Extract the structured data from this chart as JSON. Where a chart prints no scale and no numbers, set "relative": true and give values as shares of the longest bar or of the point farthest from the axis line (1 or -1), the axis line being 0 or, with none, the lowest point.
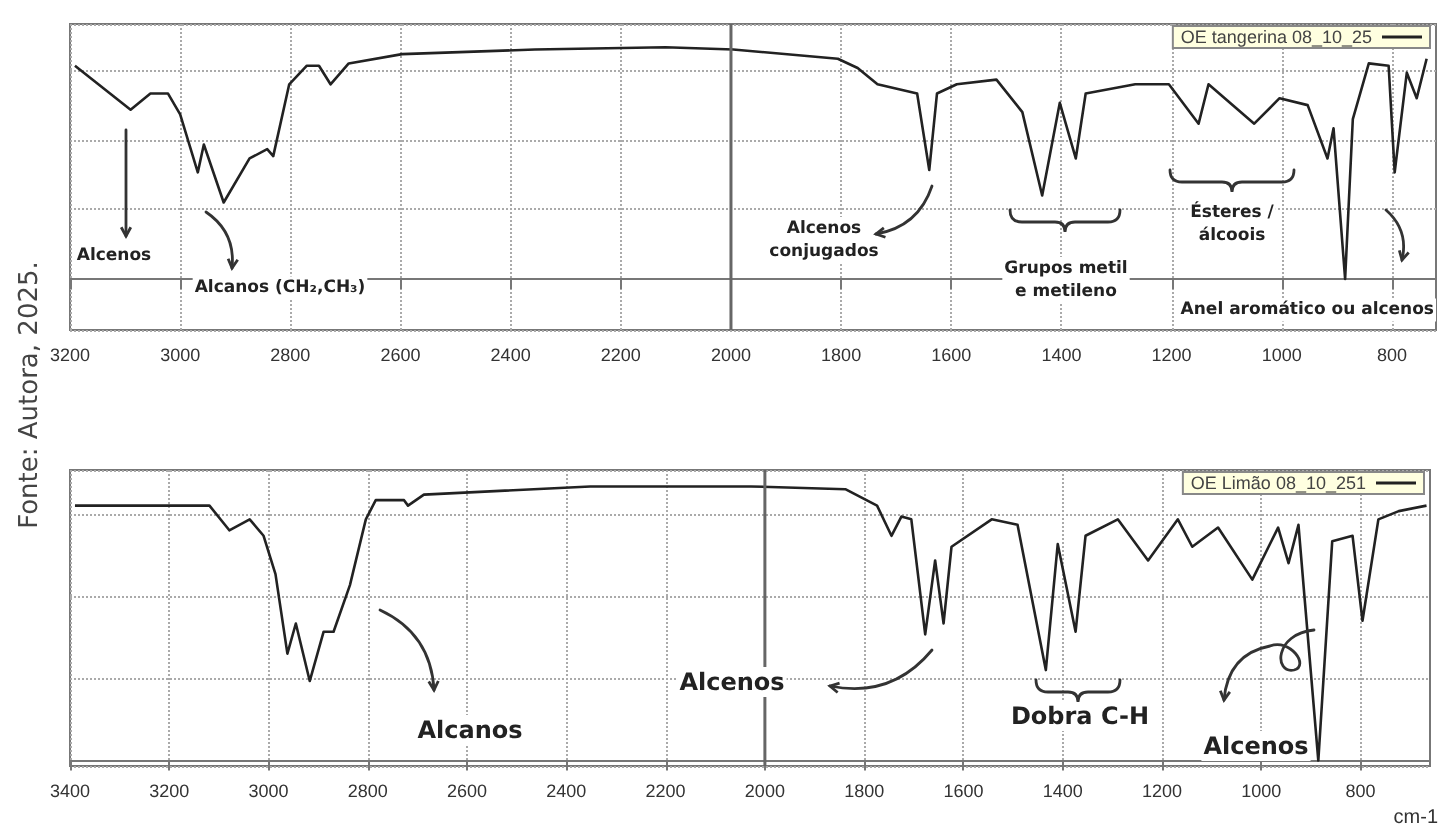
{
  "chart_data": [
    {
      "type": "line",
      "relative": true,
      "grid": true,
      "legend": "top right",
      "marker": "none",
      "xlim": [
        3200,
        720
      ],
      "xticks": [
        3200,
        3000,
        2800,
        2600,
        2400,
        2200,
        2000,
        1800,
        1600,
        1400,
        1200,
        1000,
        800
      ],
      "ref_lines": [
        {
          "axis": "x",
          "value": 2000,
          "color": "#666666"
        }
      ],
      "series": [
        {
          "name": "OE tangerina 08_10_25",
          "color": "#222222",
          "x": [
            3191,
            3090,
            3054,
            3022,
            3000,
            2968,
            2957,
            2921,
            2874,
            2842,
            2831,
            2802,
            2770,
            2748,
            2727,
            2694,
            2597,
            2356,
            2119,
            1996,
            1806,
            1770,
            1734,
            1662,
            1640,
            1626,
            1590,
            1518,
            1471,
            1435,
            1403,
            1374,
            1356,
            1266,
            1205,
            1151,
            1133,
            1050,
            1004,
            953,
            917,
            906,
            885,
            871,
            842,
            806,
            795,
            773,
            755,
            737
          ],
          "values": [
            0.92,
            0.73,
            0.8,
            0.8,
            0.71,
            0.46,
            0.58,
            0.33,
            0.52,
            0.56,
            0.53,
            0.84,
            0.92,
            0.92,
            0.84,
            0.93,
            0.97,
            0.99,
            1,
            0.99,
            0.95,
            0.91,
            0.84,
            0.8,
            0.47,
            0.8,
            0.84,
            0.86,
            0.72,
            0.36,
            0.76,
            0.52,
            0.8,
            0.84,
            0.84,
            0.67,
            0.84,
            0.67,
            0.78,
            0.75,
            0.52,
            0.65,
            0,
            0.69,
            0.93,
            0.92,
            0.46,
            0.89,
            0.78,
            0.95
          ]
        }
      ],
      "annotations": [
        "Alcenos",
        "Alcanos (CH₂,CH₃)",
        "Alcenos\nconjugados",
        "Grupos metil\ne metileno",
        "Ésteres /\nálcoois",
        "Anel aromático ou alcenos",
        "Fonte: Autora, 2025."
      ]
    },
    {
      "type": "line",
      "relative": true,
      "grid": true,
      "legend": "top right",
      "marker": "none",
      "xlim": [
        3400,
        660
      ],
      "xticks": [
        3400,
        3200,
        3000,
        2800,
        2600,
        2400,
        2200,
        2000,
        1800,
        1600,
        1400,
        1200,
        1000,
        800
      ],
      "xlabel": "cm-1",
      "ref_lines": [
        {
          "axis": "x",
          "value": 2000,
          "color": "#666666"
        }
      ],
      "series": [
        {
          "name": "OE Limão 08_10_251",
          "color": "#222222",
          "x": [
            3390,
            3119,
            3079,
            3038,
            3010,
            2986,
            2962,
            2945,
            2917,
            2889,
            2869,
            2836,
            2804,
            2784,
            2727,
            2719,
            2687,
            2352,
            2028,
            1838,
            1774,
            1745,
            1725,
            1705,
            1677,
            1657,
            1640,
            1624,
            1543,
            1491,
            1434,
            1410,
            1374,
            1354,
            1289,
            1228,
            1168,
            1139,
            1087,
            1018,
            966,
            945,
            925,
            913,
            885,
            857,
            816,
            796,
            764,
            723,
            667
          ],
          "values": [
            0.93,
            0.93,
            0.84,
            0.88,
            0.82,
            0.68,
            0.39,
            0.5,
            0.29,
            0.47,
            0.47,
            0.64,
            0.88,
            0.95,
            0.95,
            0.93,
            0.97,
            1,
            1,
            0.99,
            0.93,
            0.82,
            0.89,
            0.88,
            0.46,
            0.73,
            0.5,
            0.78,
            0.88,
            0.86,
            0.33,
            0.79,
            0.47,
            0.82,
            0.88,
            0.73,
            0.88,
            0.78,
            0.85,
            0.66,
            0.85,
            0.72,
            0.86,
            0.6,
            0,
            0.8,
            0.82,
            0.51,
            0.88,
            0.91,
            0.93
          ]
        }
      ],
      "annotations": [
        "Alcanos",
        "Alcenos",
        "Dobra C-H",
        "Alcenos"
      ]
    }
  ]
}
